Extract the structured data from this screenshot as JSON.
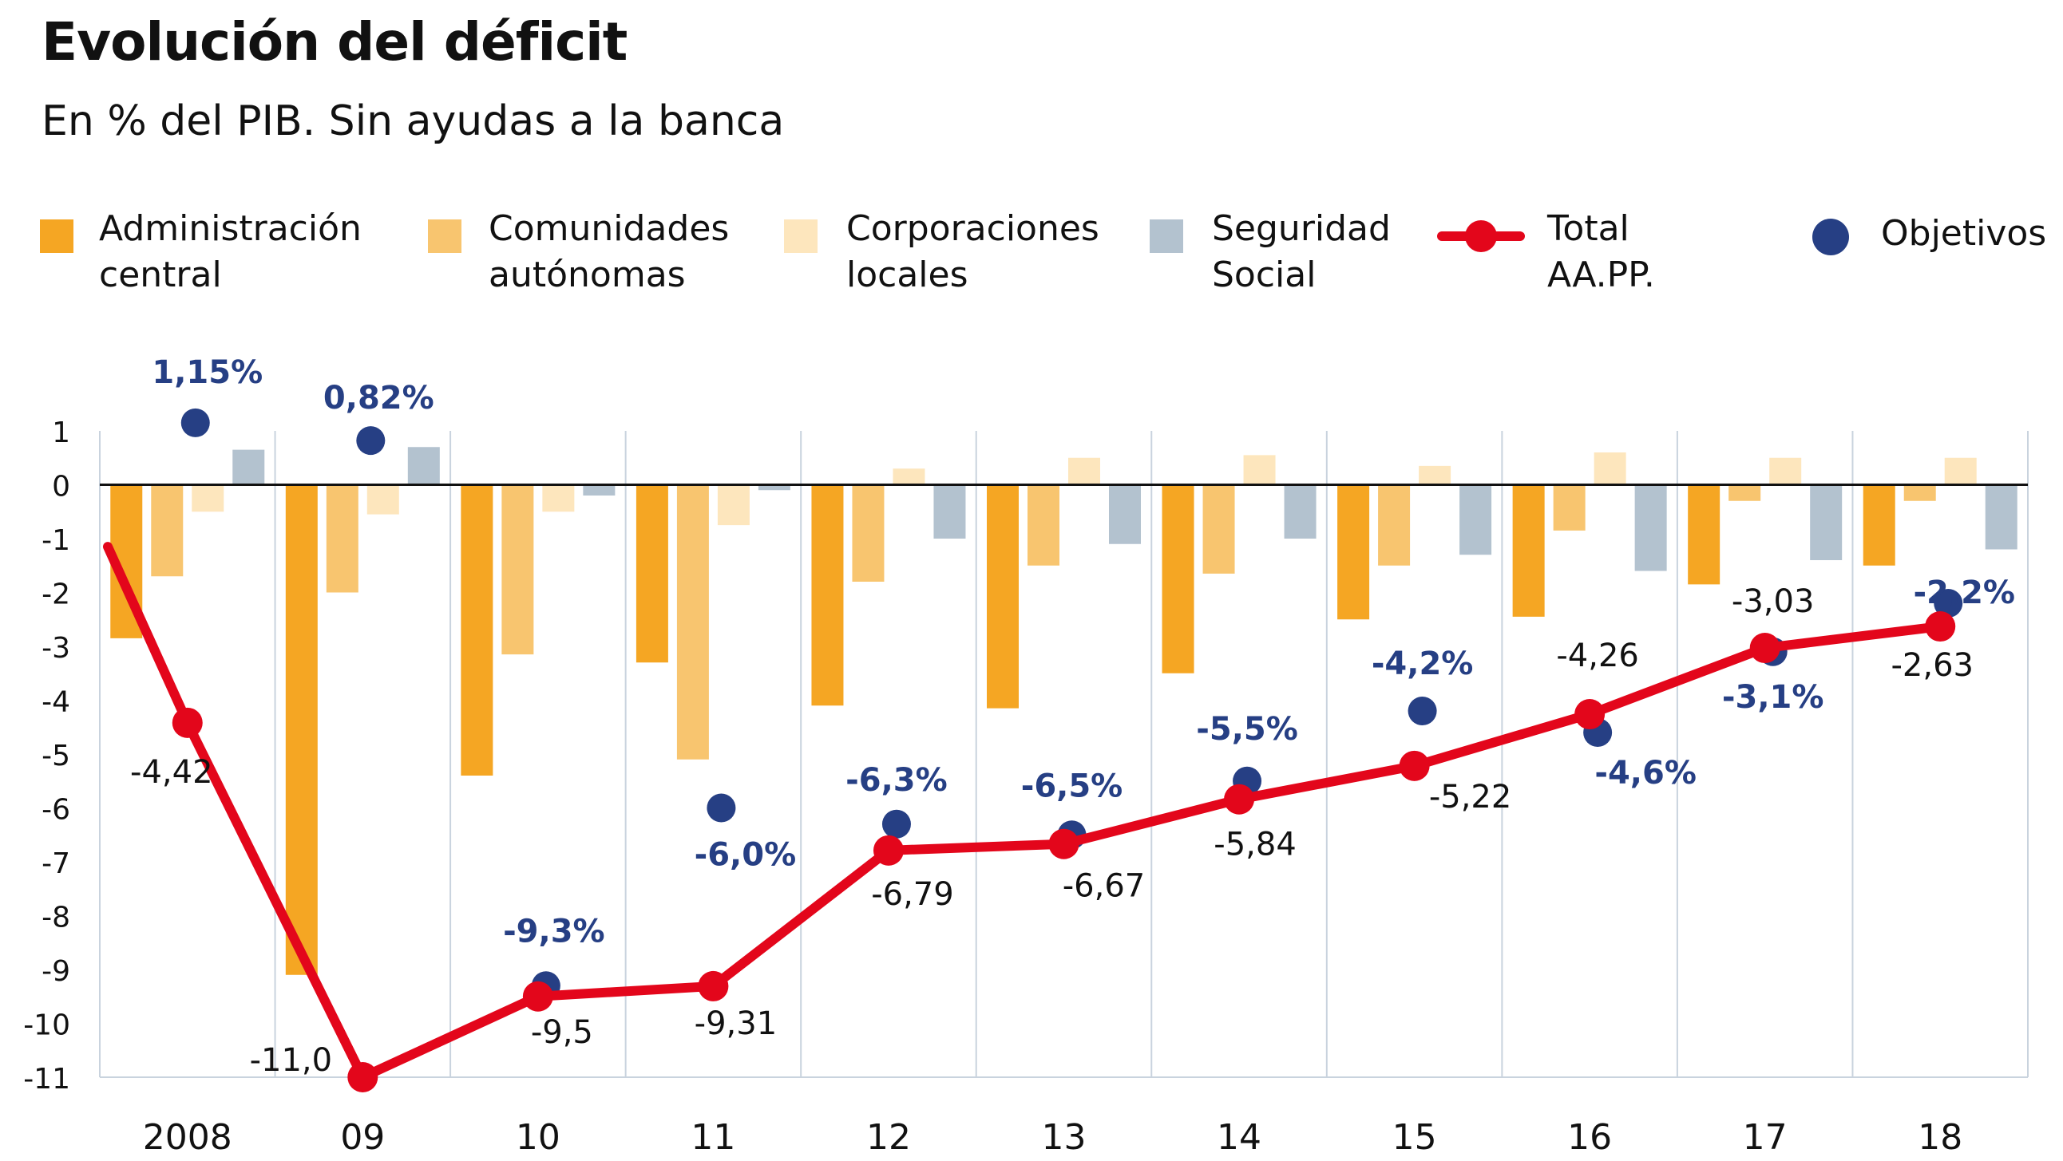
{
  "title": "Evolución del déficit",
  "subtitle": "En % del PIB. Sin ayudas a la banca",
  "colors": {
    "administracion_central": "#f5a623",
    "comunidades_autonomas": "#f8c56f",
    "corporaciones_locales": "#fde6bd",
    "seguridad_social": "#b3c2cf",
    "total": "#e3061b",
    "objetivos": "#263f84",
    "grid": "#c9d3de"
  },
  "legend": {
    "items": [
      {
        "key": "administracion_central",
        "label": "Administración\ncentral",
        "marker": "square"
      },
      {
        "key": "comunidades_autonomas",
        "label": "Comunidades\nautónomas",
        "marker": "square"
      },
      {
        "key": "corporaciones_locales",
        "label": "Corporaciones\nlocales",
        "marker": "square"
      },
      {
        "key": "seguridad_social",
        "label": "Seguridad\nSocial",
        "marker": "square"
      },
      {
        "key": "total",
        "label": "Total AA.PP.",
        "marker": "line"
      },
      {
        "key": "objetivos",
        "label": "Objetivos",
        "marker": "dot"
      }
    ]
  },
  "chart_data": {
    "type": "bar",
    "title": "Evolución del déficit",
    "subtitle": "En % del PIB. Sin ayudas a la banca",
    "categories": [
      "2008",
      "09",
      "10",
      "11",
      "12",
      "13",
      "14",
      "15",
      "16",
      "17",
      "18"
    ],
    "ylim": [
      -11,
      1
    ],
    "yticks": [
      1,
      0,
      -1,
      -2,
      -3,
      -4,
      -5,
      -6,
      -7,
      -8,
      -9,
      -10,
      -11
    ],
    "grid": "vertical category separators",
    "legend_position": "top",
    "series": [
      {
        "name": "Administración central",
        "type": "bar",
        "color_key": "administracion_central",
        "values": [
          -2.85,
          -9.1,
          -5.4,
          -3.3,
          -4.1,
          -4.15,
          -3.5,
          -2.5,
          -2.45,
          -1.85,
          -1.5
        ]
      },
      {
        "name": "Comunidades autónomas",
        "type": "bar",
        "color_key": "comunidades_autonomas",
        "values": [
          -1.7,
          -2.0,
          -3.15,
          -5.1,
          -1.8,
          -1.5,
          -1.65,
          -1.5,
          -0.85,
          -0.3,
          -0.3
        ]
      },
      {
        "name": "Corporaciones locales",
        "type": "bar",
        "color_key": "corporaciones_locales",
        "values": [
          -0.5,
          -0.55,
          -0.5,
          -0.75,
          0.3,
          0.5,
          0.55,
          0.35,
          0.6,
          0.5,
          0.5
        ]
      },
      {
        "name": "Seguridad Social",
        "type": "bar",
        "color_key": "seguridad_social",
        "values": [
          0.65,
          0.7,
          -0.2,
          -0.1,
          -1.0,
          -1.1,
          -1.0,
          -1.3,
          -1.6,
          -1.4,
          -1.2
        ]
      },
      {
        "name": "Total AA.PP.",
        "type": "line",
        "color_key": "total",
        "values": [
          -4.42,
          -11.0,
          -9.5,
          -9.31,
          -6.79,
          -6.67,
          -5.84,
          -5.22,
          -4.26,
          -3.03,
          -2.63
        ],
        "labels": [
          "-4,42",
          "-11,0",
          "-9,5",
          "-9,31",
          "-6,79",
          "-6,67",
          "-5,84",
          "-5,22",
          "-4,26",
          "-3,03",
          "-2,63"
        ],
        "line_start_value": -1.15
      },
      {
        "name": "Objetivos",
        "type": "scatter",
        "color_key": "objetivos",
        "values": [
          1.15,
          0.82,
          -9.3,
          -6.0,
          -6.3,
          -6.5,
          -5.5,
          -4.2,
          -4.6,
          -3.1,
          -2.2
        ],
        "labels": [
          "1,15%",
          "0,82%",
          "-9,3%",
          "-6,0%",
          "-6,3%",
          "-6,5%",
          "-5,5%",
          "-4,2%",
          "-4,6%",
          "-3,1%",
          "-2,2%"
        ]
      }
    ]
  }
}
